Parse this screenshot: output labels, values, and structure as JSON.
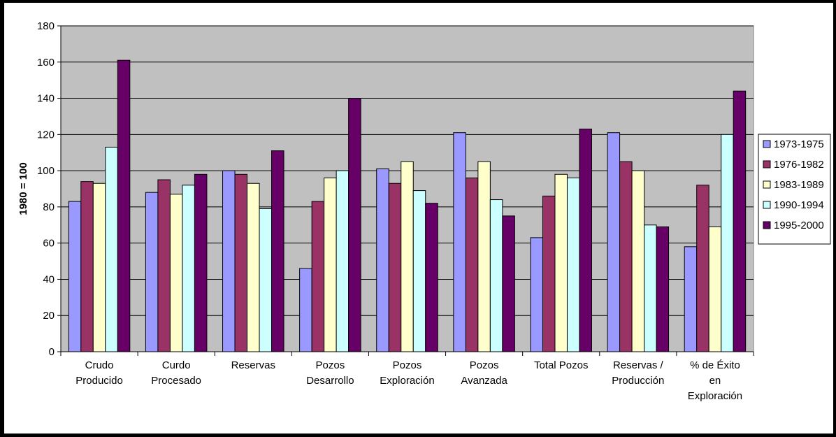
{
  "chart_data": {
    "type": "bar",
    "title": "",
    "xlabel": "",
    "ylabel": "1980 = 100",
    "ylim": [
      0,
      180
    ],
    "yticks": [
      0,
      20,
      40,
      60,
      80,
      100,
      120,
      140,
      160,
      180
    ],
    "grid": true,
    "legend_position": "right",
    "categories": [
      [
        "Crudo",
        "Producido"
      ],
      [
        "Curdo",
        "Procesado"
      ],
      [
        "Reservas"
      ],
      [
        "Pozos",
        "Desarrollo"
      ],
      [
        "Pozos",
        "Exploración"
      ],
      [
        "Pozos",
        "Avanzada"
      ],
      [
        "Total Pozos"
      ],
      [
        "Reservas /",
        "Producción"
      ],
      [
        "% de Éxito",
        "en",
        "Exploración"
      ]
    ],
    "series": [
      {
        "name": "1973-1975",
        "color": "#9999FF",
        "values": [
          83,
          88,
          100,
          46,
          101,
          121,
          63,
          121,
          58
        ]
      },
      {
        "name": "1976-1982",
        "color": "#993366",
        "values": [
          94,
          95,
          98,
          83,
          93,
          96,
          86,
          105,
          92
        ]
      },
      {
        "name": "1983-1989",
        "color": "#FFFFCC",
        "values": [
          93,
          87,
          93,
          96,
          105,
          105,
          98,
          100,
          69
        ]
      },
      {
        "name": "1990-1994",
        "color": "#CCFFFF",
        "values": [
          113,
          92,
          79,
          100,
          89,
          84,
          96,
          70,
          120
        ]
      },
      {
        "name": "1995-2000",
        "color": "#660066",
        "values": [
          161,
          98,
          111,
          140,
          82,
          75,
          123,
          69,
          144
        ]
      }
    ],
    "plot_background": "#C0C0C0"
  }
}
